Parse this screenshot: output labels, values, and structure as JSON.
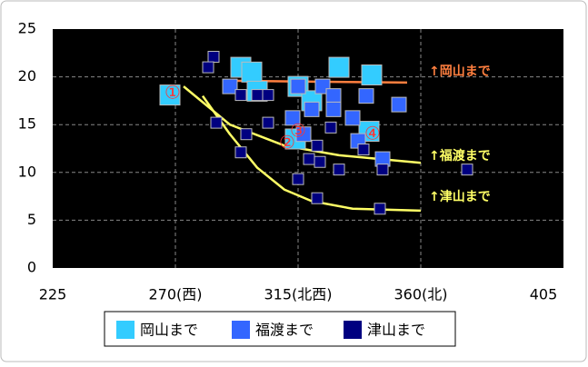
{
  "chart_data": {
    "type": "scatter",
    "xlim": [
      225,
      405
    ],
    "ylim": [
      0,
      25
    ],
    "xticks": [
      225,
      {
        "value": 270,
        "label": "270(西)"
      },
      {
        "value": 315,
        "label": "315(北西)"
      },
      {
        "value": 360,
        "label": "360(北)"
      },
      405
    ],
    "yticks": [
      0,
      5,
      10,
      15,
      20,
      25
    ],
    "grid": true,
    "series": [
      {
        "name": "岡山まで",
        "color": "#33ccff",
        "size": 22,
        "x": [
          268,
          294,
          298,
          330,
          342,
          315,
          314,
          341,
          320,
          300
        ],
        "values": [
          18.1,
          21,
          20.5,
          21,
          20.2,
          19,
          13.5,
          14.3,
          17.5,
          18.5
        ]
      },
      {
        "name": "福渡まで",
        "color": "#3366ff",
        "size": 16,
        "x": [
          290,
          315,
          324,
          328,
          340,
          328,
          335,
          352,
          313,
          320,
          317,
          337,
          346
        ],
        "values": [
          19,
          19,
          19,
          18,
          18,
          16.6,
          15.7,
          17.1,
          15.7,
          16.6,
          14,
          13.3,
          11.4
        ]
      },
      {
        "name": "津山まで",
        "color": "#000080",
        "size": 12,
        "x": [
          284,
          282,
          285,
          294,
          300,
          304,
          296,
          294,
          304,
          315,
          319,
          323,
          322,
          330,
          339,
          346,
          345,
          377,
          327,
          322
        ],
        "values": [
          22.1,
          21,
          15.2,
          18.1,
          18.1,
          18.1,
          14,
          12.1,
          15.2,
          9.3,
          11.4,
          11.1,
          7.3,
          10.3,
          12.4,
          10.3,
          6.2,
          10.3,
          14.7,
          12.8
        ]
      }
    ],
    "trendlines": [
      {
        "color": "#ff7f3f",
        "x": [
          290,
          320,
          355
        ],
        "values": [
          19.6,
          19.5,
          19.4
        ]
      },
      {
        "color": "#ffff66",
        "x": [
          273,
          290,
          310,
          330,
          360
        ],
        "values": [
          19,
          15,
          12.8,
          11.8,
          11
        ]
      },
      {
        "color": "#ffff66",
        "x": [
          280,
          290,
          300,
          310,
          320,
          335,
          360
        ],
        "values": [
          18,
          14,
          10.5,
          8.2,
          7,
          6.2,
          6
        ]
      }
    ],
    "annotations": [
      {
        "text": "↑岡山まで",
        "color": "#ff7f3f"
      },
      {
        "text": "↑福渡まで",
        "color": "#ffff66"
      },
      {
        "text": "↑津山まで",
        "color": "#ffff66"
      }
    ],
    "markers": [
      "①",
      "②",
      "③",
      "④"
    ]
  }
}
